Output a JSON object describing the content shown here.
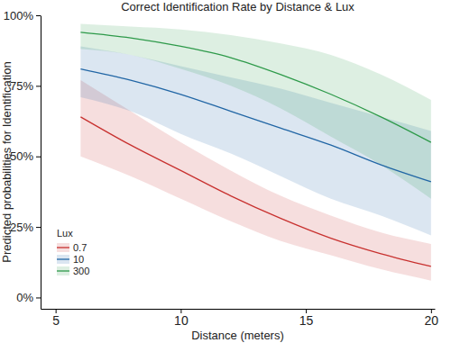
{
  "chart_data": {
    "type": "line",
    "title": "Correct Identification Rate by Distance & Lux",
    "x_label": "Distance (meters)",
    "y_label": "Predicted probabilities for Identification",
    "legend_title": "Lux",
    "legend": "bottom-left",
    "grid": false,
    "x": [
      6,
      8,
      10,
      12,
      14,
      16,
      18,
      20
    ],
    "series": [
      {
        "name": "0.7",
        "color": "#c8312f",
        "values": [
          64,
          54,
          45,
          36,
          28,
          21,
          15.5,
          11
        ],
        "lower": [
          50,
          43,
          35,
          27,
          20,
          15,
          10,
          6
        ],
        "upper": [
          77,
          66,
          55,
          45,
          36,
          29,
          23,
          19
        ]
      },
      {
        "name": "10",
        "color": "#2166a5",
        "values": [
          81,
          77,
          72,
          66,
          60,
          54,
          47,
          41
        ],
        "lower": [
          71,
          66,
          58,
          51,
          43,
          35,
          29,
          22
        ],
        "upper": [
          89,
          86,
          82,
          78,
          74,
          69,
          64,
          59
        ]
      },
      {
        "name": "300",
        "color": "#2e9a4a",
        "values": [
          94,
          92,
          89,
          85,
          79,
          72,
          64,
          55
        ],
        "lower": [
          88,
          86,
          81,
          75,
          67,
          57,
          47,
          35
        ],
        "upper": [
          97,
          96,
          95,
          93,
          90,
          86,
          79,
          70
        ]
      }
    ],
    "xlim": [
      4.4,
      20.15
    ],
    "xticks": [
      5,
      10,
      15,
      20
    ],
    "ylim": [
      -4,
      100
    ],
    "yticks": [
      {
        "value": 0,
        "label": "0%"
      },
      {
        "value": 25,
        "label": "25%"
      },
      {
        "value": 50,
        "label": "50%"
      },
      {
        "value": 75,
        "label": "75%"
      },
      {
        "value": 100,
        "label": "100%"
      }
    ]
  }
}
